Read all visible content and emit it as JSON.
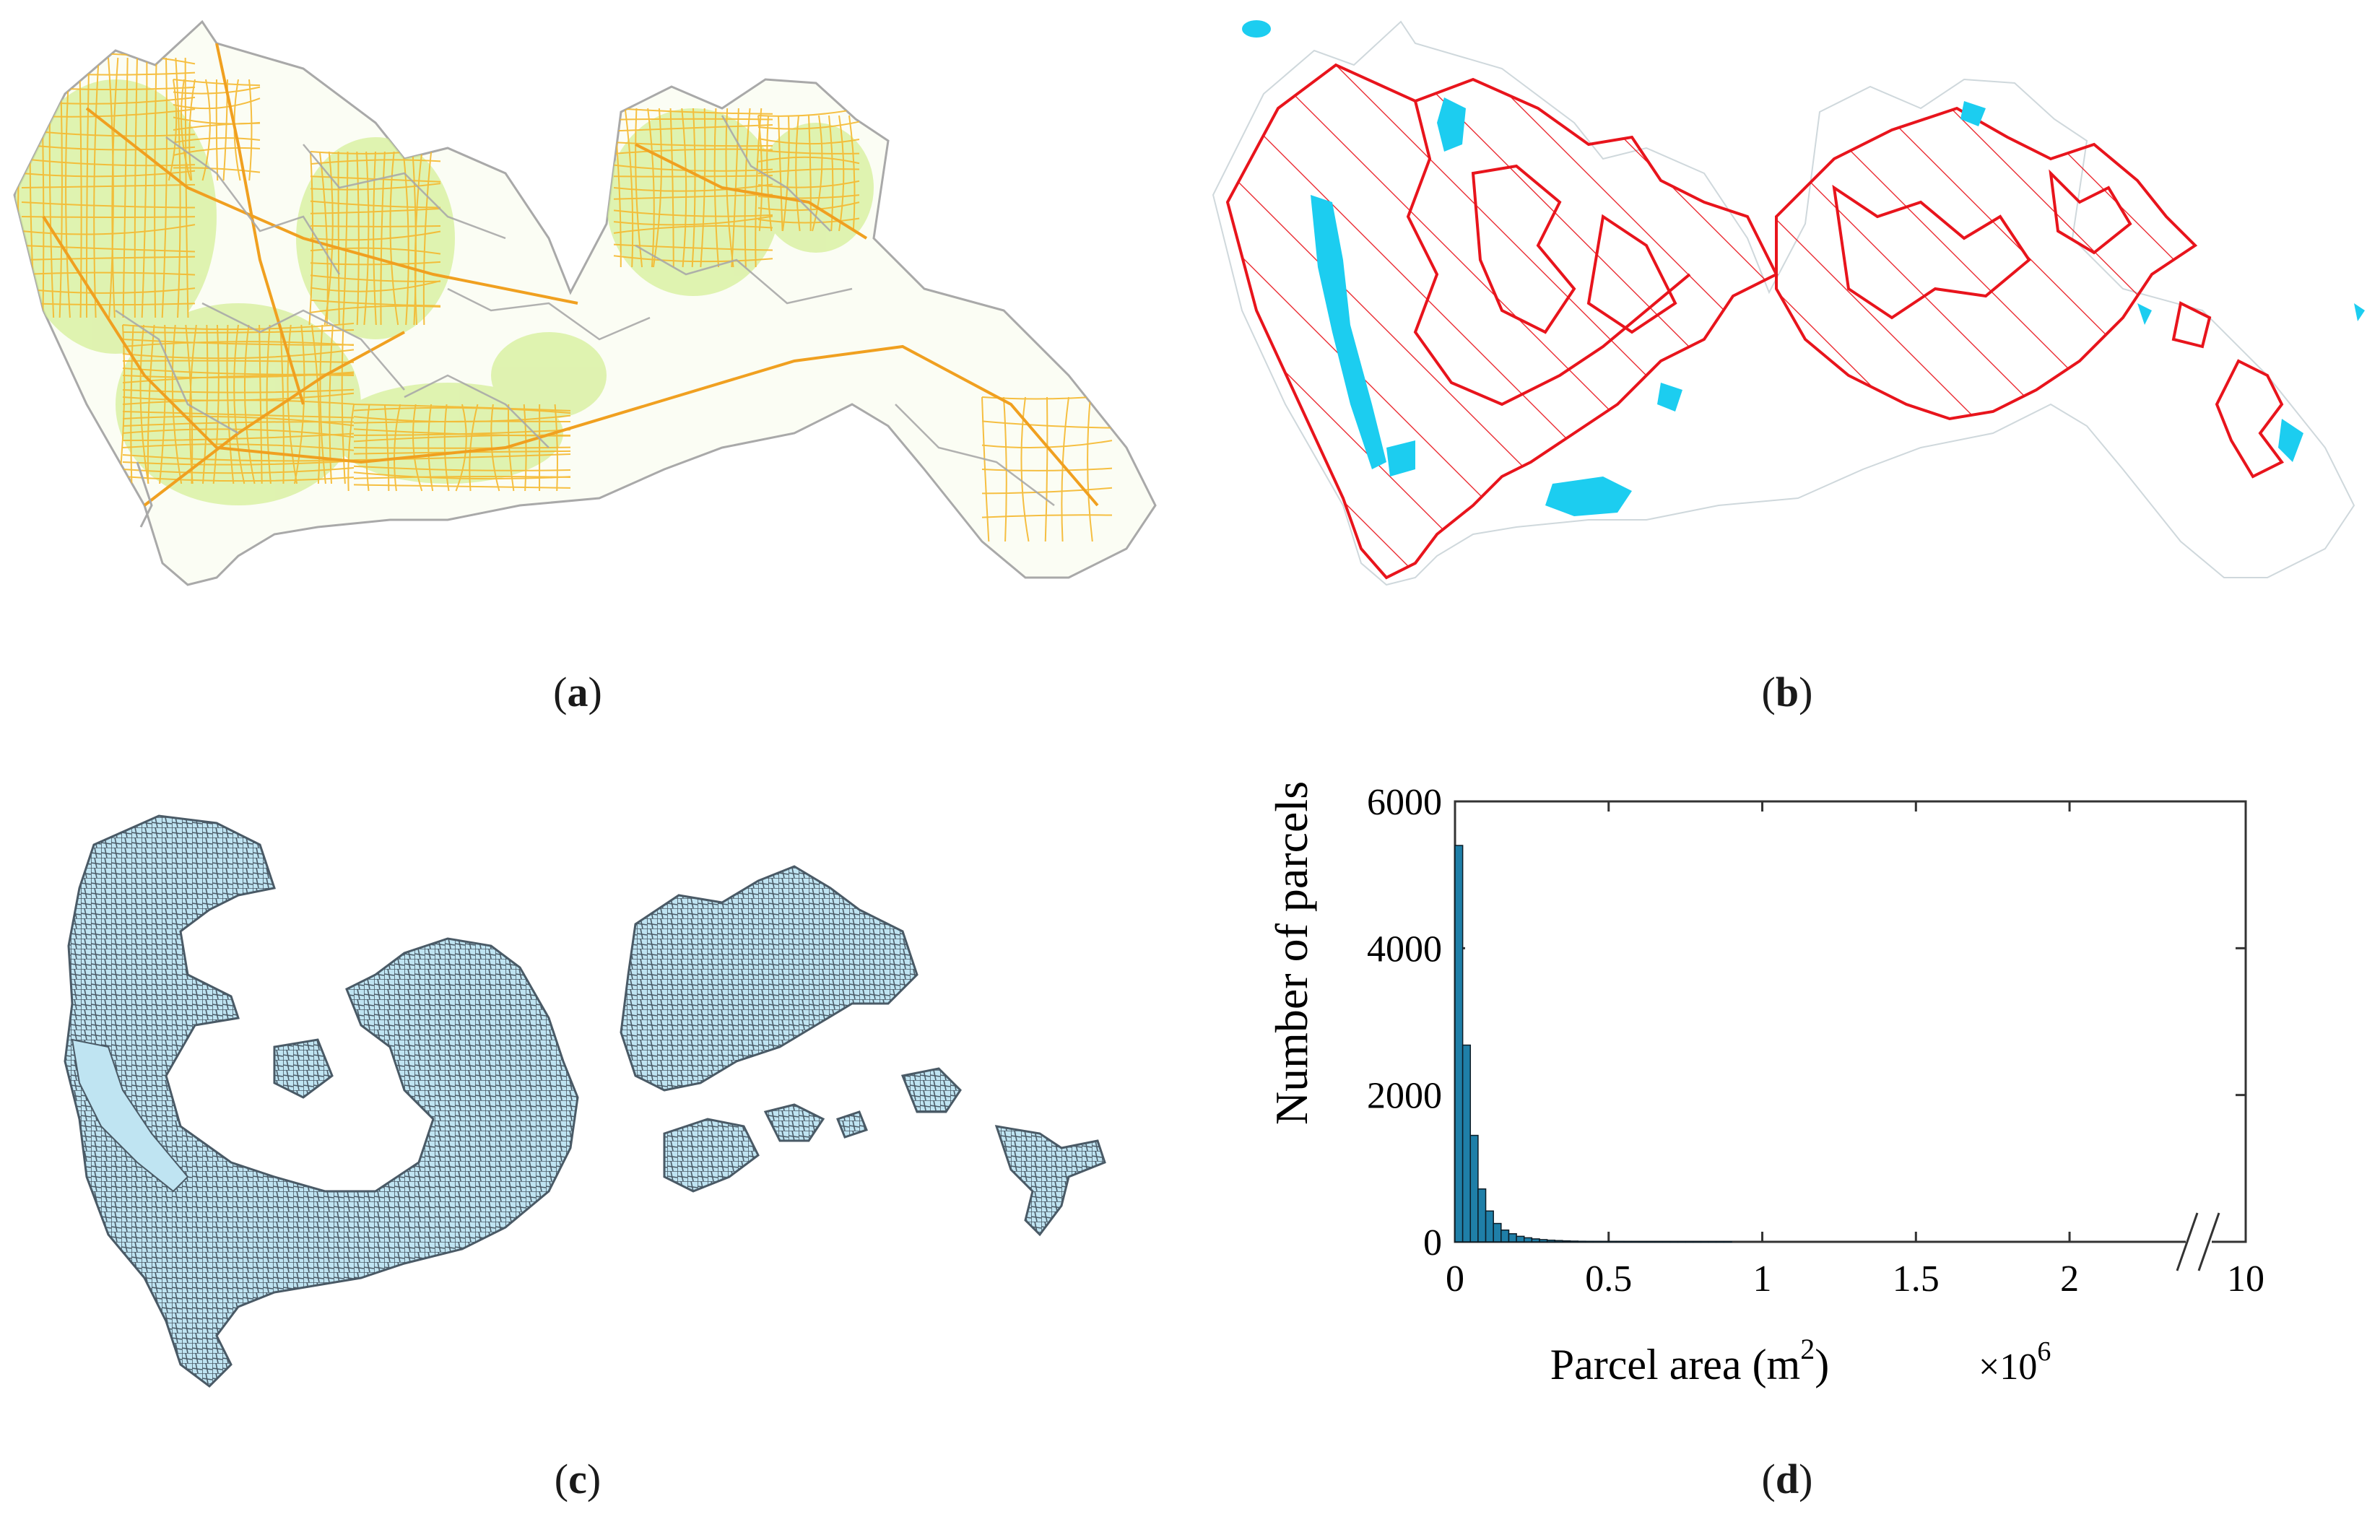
{
  "panels": [
    {
      "id": "a",
      "caption": "a"
    },
    {
      "id": "b",
      "caption": "b"
    },
    {
      "id": "c",
      "caption": "c"
    },
    {
      "id": "d",
      "caption": "d"
    }
  ],
  "colors": {
    "roads": "#f5b82e",
    "greenland": "#d6ef9a",
    "district_border": "#a9a9a9",
    "protected_outline": "#e8141c",
    "water": "#1ccdf0",
    "parcel_fill": "#bfe4f2",
    "parcel_edge": "#4a5a66",
    "bar_fill": "#1f7fa8"
  },
  "chart_data": {
    "type": "bar",
    "ylabel": "Number of parcels",
    "xlabel_main": "Parcel area (m",
    "xlabel_sup": "2",
    "xlabel_close": ")",
    "x_multiplier": "×10",
    "x_multiplier_sup": "6",
    "xlim": [
      0,
      2.35
    ],
    "ylim": [
      0,
      6000
    ],
    "yticks": [
      "0",
      "2000",
      "4000",
      "6000"
    ],
    "xticks": [
      "0",
      "0.5",
      "1",
      "1.5",
      "2"
    ],
    "axis_break_tick": "10",
    "bin_width": 0.025,
    "values": [
      5400,
      2680,
      1450,
      720,
      420,
      250,
      160,
      110,
      75,
      55,
      40,
      30,
      22,
      17,
      13,
      10,
      8,
      7,
      6,
      5,
      4,
      4,
      3,
      3,
      2,
      2,
      2,
      2,
      1,
      1,
      1,
      1,
      1,
      1,
      1,
      1
    ]
  }
}
